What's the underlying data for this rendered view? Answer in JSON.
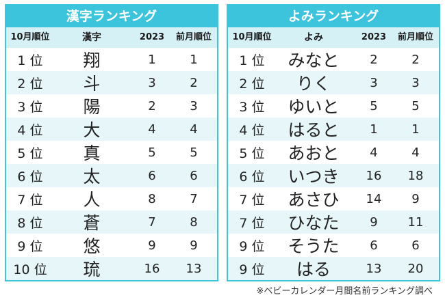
{
  "kanji": {
    "title": "漢字ランキング",
    "headers": [
      "10月順位",
      "漢字",
      "2023",
      "前月順位"
    ],
    "rows": [
      {
        "rank": "1 位",
        "value": "翔",
        "y2023": "1",
        "prev": "1"
      },
      {
        "rank": "2 位",
        "value": "斗",
        "y2023": "3",
        "prev": "2"
      },
      {
        "rank": "3 位",
        "value": "陽",
        "y2023": "2",
        "prev": "3"
      },
      {
        "rank": "4 位",
        "value": "大",
        "y2023": "4",
        "prev": "4"
      },
      {
        "rank": "5 位",
        "value": "真",
        "y2023": "5",
        "prev": "5"
      },
      {
        "rank": "6 位",
        "value": "太",
        "y2023": "6",
        "prev": "6"
      },
      {
        "rank": "7 位",
        "value": "人",
        "y2023": "8",
        "prev": "7"
      },
      {
        "rank": "8 位",
        "value": "蒼",
        "y2023": "7",
        "prev": "8"
      },
      {
        "rank": "9 位",
        "value": "悠",
        "y2023": "9",
        "prev": "9"
      },
      {
        "rank": "10 位",
        "value": "琉",
        "y2023": "16",
        "prev": "13"
      }
    ]
  },
  "yomi": {
    "title": "よみランキング",
    "headers": [
      "10月順位",
      "よみ",
      "2023",
      "前月順位"
    ],
    "rows": [
      {
        "rank": "1 位",
        "value": "みなと",
        "y2023": "2",
        "prev": "2"
      },
      {
        "rank": "2 位",
        "value": "りく",
        "y2023": "3",
        "prev": "3"
      },
      {
        "rank": "3 位",
        "value": "ゆいと",
        "y2023": "5",
        "prev": "5"
      },
      {
        "rank": "4 位",
        "value": "はると",
        "y2023": "1",
        "prev": "1"
      },
      {
        "rank": "5 位",
        "value": "あおと",
        "y2023": "4",
        "prev": "4"
      },
      {
        "rank": "6 位",
        "value": "いつき",
        "y2023": "16",
        "prev": "18"
      },
      {
        "rank": "7 位",
        "value": "あさひ",
        "y2023": "14",
        "prev": "9"
      },
      {
        "rank": "7 位",
        "value": "ひなた",
        "y2023": "9",
        "prev": "11"
      },
      {
        "rank": "9 位",
        "value": "そうた",
        "y2023": "6",
        "prev": "6"
      },
      {
        "rank": "9 位",
        "value": "はる",
        "y2023": "13",
        "prev": "20"
      }
    ]
  },
  "footnote": "※ベビーカレンダー月間名前ランキング調べ",
  "colors": {
    "accent": "#3cc4dc",
    "header_bg": "#d6f1f6",
    "alt_row_bg": "#e6f6f9"
  }
}
